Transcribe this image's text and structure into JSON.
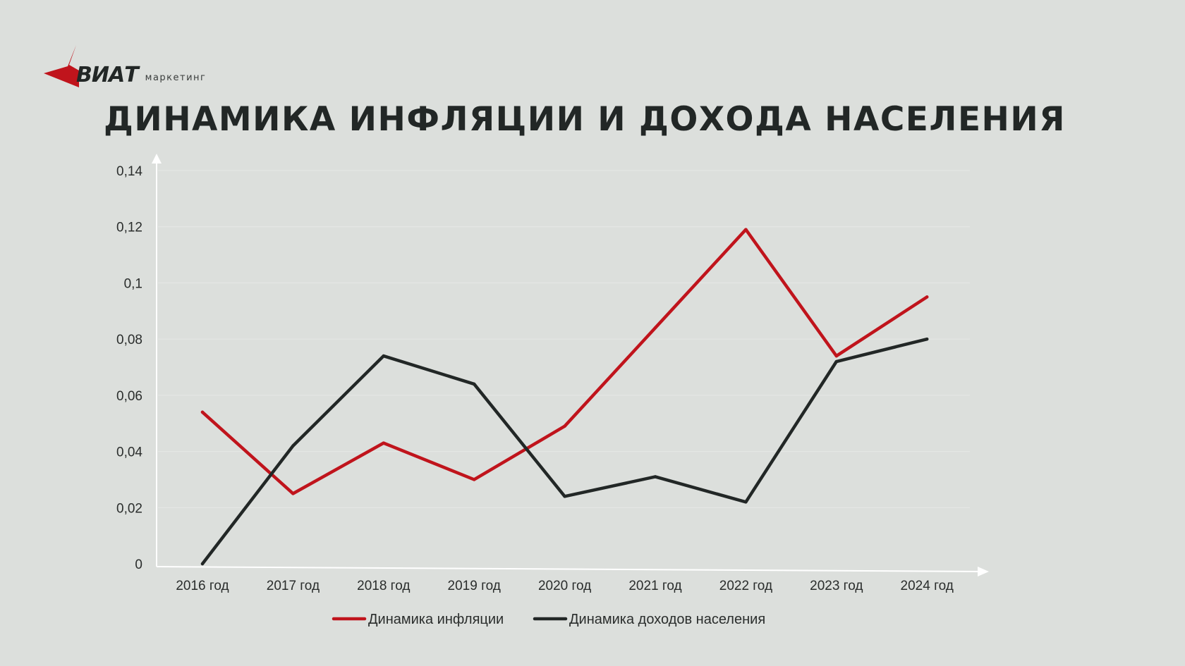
{
  "logo": {
    "word": "ВИАТ",
    "sub": "маркетинг"
  },
  "page_title": "ДИНАМИКА ИНФЛЯЦИИ И ДОХОДА НАСЕЛЕНИЯ",
  "colors": {
    "inflation": "#c0141c",
    "income": "#222726",
    "background": "#dcdfdc",
    "axis": "#ffffff",
    "grid": "#e6e8e6"
  },
  "chart_data": {
    "type": "line",
    "title": "ДИНАМИКА ИНФЛЯЦИИ И ДОХОДА НАСЕЛЕНИЯ",
    "categories": [
      "2016 год",
      "2017 год",
      "2018 год",
      "2019 год",
      "2020 год",
      "2021 год",
      "2022 год",
      "2023 год",
      "2024 год"
    ],
    "y_ticks": [
      "0",
      "0,02",
      "0,04",
      "0,06",
      "0,08",
      "0,1",
      "0,12",
      "0,14"
    ],
    "ylim": [
      0,
      0.14
    ],
    "grid": true,
    "legend_position": "bottom",
    "series": [
      {
        "name": "Динамика инфляции",
        "color": "#c0141c",
        "values": [
          0.054,
          0.025,
          0.043,
          0.03,
          0.049,
          0.084,
          0.119,
          0.074,
          0.095
        ]
      },
      {
        "name": "Динамика доходов населения",
        "color": "#222726",
        "values": [
          0.0,
          0.042,
          0.074,
          0.064,
          0.024,
          0.031,
          0.022,
          0.072,
          0.08
        ]
      }
    ]
  }
}
